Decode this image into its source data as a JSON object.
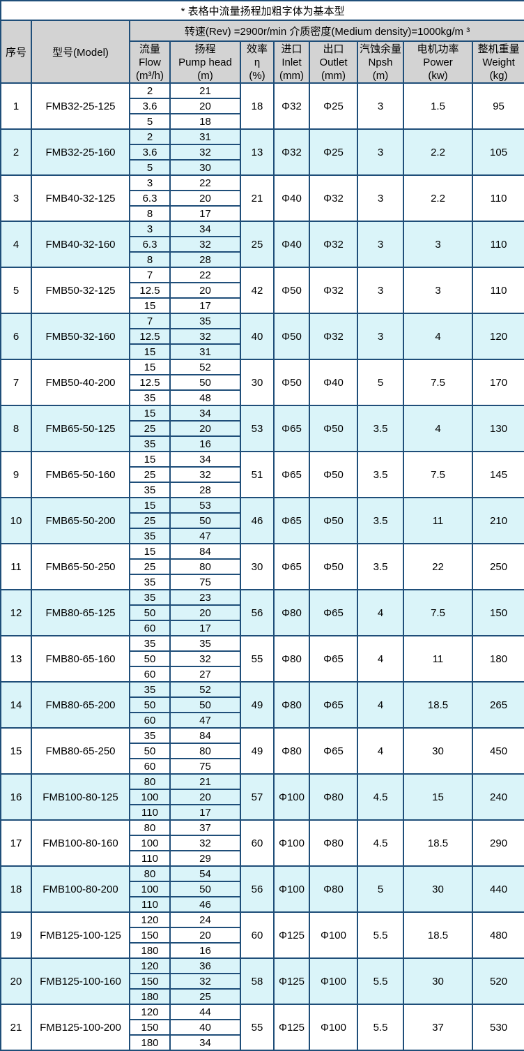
{
  "note": "* 表格中流量扬程加粗字体为基本型",
  "header": {
    "speed": "转速(Rev) =2900r/min  介质密度(Medium density)=1000kg/m ³",
    "index": "序号",
    "model": "型号(Model)",
    "cols": [
      {
        "id": "flow",
        "lines": [
          "流量",
          "Flow",
          "(m³/h)"
        ]
      },
      {
        "id": "head",
        "lines": [
          "扬程",
          "Pump head",
          "(m)"
        ]
      },
      {
        "id": "eff",
        "lines": [
          "效率",
          "η",
          "(%)"
        ]
      },
      {
        "id": "inlet",
        "lines": [
          "进口",
          "Inlet",
          "(mm)"
        ]
      },
      {
        "id": "outlet",
        "lines": [
          "出口",
          "Outlet",
          "(mm)"
        ]
      },
      {
        "id": "npsh",
        "lines": [
          "汽蚀余量",
          "Npsh",
          "(m)"
        ]
      },
      {
        "id": "power",
        "lines": [
          "电机功率",
          "Power",
          "(kw)"
        ]
      },
      {
        "id": "weight",
        "lines": [
          "整机重量",
          "Weight",
          "(kg)"
        ]
      }
    ]
  },
  "colors": {
    "border": "#1f4e79",
    "highlight_row": "#daf4f9",
    "header_bg": "#d3d3d3"
  },
  "rows": [
    {
      "no": "1",
      "model": "FMB32-25-125",
      "flow": [
        "2",
        "3.6",
        "5"
      ],
      "head": [
        "21",
        "20",
        "18"
      ],
      "bold": [
        false,
        true,
        false
      ],
      "eff": "18",
      "inlet": "Φ32",
      "outlet": "Φ25",
      "npsh": "3",
      "power": "1.5",
      "weight": "95",
      "highlight": false
    },
    {
      "no": "2",
      "model": "FMB32-25-160",
      "flow": [
        "2",
        "3.6",
        "5"
      ],
      "head": [
        "31",
        "32",
        "30"
      ],
      "bold": [
        false,
        true,
        false
      ],
      "eff": "13",
      "inlet": "Φ32",
      "outlet": "Φ25",
      "npsh": "3",
      "power": "2.2",
      "weight": "105",
      "highlight": true
    },
    {
      "no": "3",
      "model": "FMB40-32-125",
      "flow": [
        "3",
        "6.3",
        "8"
      ],
      "head": [
        "22",
        "20",
        "17"
      ],
      "bold": [
        false,
        true,
        false
      ],
      "eff": "21",
      "inlet": "Φ40",
      "outlet": "Φ32",
      "npsh": "3",
      "power": "2.2",
      "weight": "110",
      "highlight": false
    },
    {
      "no": "4",
      "model": "FMB40-32-160",
      "flow": [
        "3",
        "6.3",
        "8"
      ],
      "head": [
        "34",
        "32",
        "28"
      ],
      "bold": [
        false,
        true,
        false
      ],
      "eff": "25",
      "inlet": "Φ40",
      "outlet": "Φ32",
      "npsh": "3",
      "power": "3",
      "weight": "110",
      "highlight": true
    },
    {
      "no": "5",
      "model": "FMB50-32-125",
      "flow": [
        "7",
        "12.5",
        "15"
      ],
      "head": [
        "22",
        "20",
        "17"
      ],
      "bold": [
        false,
        true,
        false
      ],
      "eff": "42",
      "inlet": "Φ50",
      "outlet": "Φ32",
      "npsh": "3",
      "power": "3",
      "weight": "110",
      "highlight": false
    },
    {
      "no": "6",
      "model": "FMB50-32-160",
      "flow": [
        "7",
        "12.5",
        "15"
      ],
      "head": [
        "35",
        "32",
        "31"
      ],
      "bold": [
        false,
        true,
        false
      ],
      "eff": "40",
      "inlet": "Φ50",
      "outlet": "Φ32",
      "npsh": "3",
      "power": "4",
      "weight": "120",
      "highlight": true
    },
    {
      "no": "7",
      "model": "FMB50-40-200",
      "flow": [
        "15",
        "12.5",
        "35"
      ],
      "head": [
        "52",
        "50",
        "48"
      ],
      "bold": [
        false,
        true,
        false
      ],
      "eff": "30",
      "inlet": "Φ50",
      "outlet": "Φ40",
      "npsh": "5",
      "power": "7.5",
      "weight": "170",
      "highlight": false
    },
    {
      "no": "8",
      "model": "FMB65-50-125",
      "flow": [
        "15",
        "25",
        "35"
      ],
      "head": [
        "34",
        "20",
        "16"
      ],
      "bold": [
        false,
        true,
        false
      ],
      "eff": "53",
      "inlet": "Φ65",
      "outlet": "Φ50",
      "npsh": "3.5",
      "power": "4",
      "weight": "130",
      "highlight": true
    },
    {
      "no": "9",
      "model": "FMB65-50-160",
      "flow": [
        "15",
        "25",
        "35"
      ],
      "head": [
        "34",
        "32",
        "28"
      ],
      "bold": [
        false,
        true,
        false
      ],
      "eff": "51",
      "inlet": "Φ65",
      "outlet": "Φ50",
      "npsh": "3.5",
      "power": "7.5",
      "weight": "145",
      "highlight": false
    },
    {
      "no": "10",
      "model": "FMB65-50-200",
      "flow": [
        "15",
        "25",
        "35"
      ],
      "head": [
        "53",
        "50",
        "47"
      ],
      "bold": [
        false,
        true,
        false
      ],
      "eff": "46",
      "inlet": "Φ65",
      "outlet": "Φ50",
      "npsh": "3.5",
      "power": "11",
      "weight": "210",
      "highlight": true
    },
    {
      "no": "11",
      "model": "FMB65-50-250",
      "flow": [
        "15",
        "25",
        "35"
      ],
      "head": [
        "84",
        "80",
        "75"
      ],
      "bold": [
        false,
        true,
        false
      ],
      "eff": "30",
      "inlet": "Φ65",
      "outlet": "Φ50",
      "npsh": "3.5",
      "power": "22",
      "weight": "250",
      "highlight": false
    },
    {
      "no": "12",
      "model": "FMB80-65-125",
      "flow": [
        "35",
        "50",
        "60"
      ],
      "head": [
        "23",
        "20",
        "17"
      ],
      "bold": [
        false,
        true,
        false
      ],
      "eff": "56",
      "inlet": "Φ80",
      "outlet": "Φ65",
      "npsh": "4",
      "power": "7.5",
      "weight": "150",
      "highlight": true
    },
    {
      "no": "13",
      "model": "FMB80-65-160",
      "flow": [
        "35",
        "50",
        "60"
      ],
      "head": [
        "35",
        "32",
        "27"
      ],
      "bold": [
        false,
        true,
        false
      ],
      "eff": "55",
      "inlet": "Φ80",
      "outlet": "Φ65",
      "npsh": "4",
      "power": "11",
      "weight": "180",
      "highlight": false
    },
    {
      "no": "14",
      "model": "FMB80-65-200",
      "flow": [
        "35",
        "50",
        "60"
      ],
      "head": [
        "52",
        "50",
        "47"
      ],
      "bold": [
        false,
        true,
        false
      ],
      "eff": "49",
      "inlet": "Φ80",
      "outlet": "Φ65",
      "npsh": "4",
      "power": "18.5",
      "weight": "265",
      "highlight": true
    },
    {
      "no": "15",
      "model": "FMB80-65-250",
      "flow": [
        "35",
        "50",
        "60"
      ],
      "head": [
        "84",
        "80",
        "75"
      ],
      "bold": [
        false,
        true,
        false
      ],
      "eff": "49",
      "inlet": "Φ80",
      "outlet": "Φ65",
      "npsh": "4",
      "power": "30",
      "weight": "450",
      "highlight": false
    },
    {
      "no": "16",
      "model": "FMB100-80-125",
      "flow": [
        "80",
        "100",
        "110"
      ],
      "head": [
        "21",
        "20",
        "17"
      ],
      "bold": [
        false,
        true,
        false
      ],
      "eff": "57",
      "inlet": "Φ100",
      "outlet": "Φ80",
      "npsh": "4.5",
      "power": "15",
      "weight": "240",
      "highlight": true
    },
    {
      "no": "17",
      "model": "FMB100-80-160",
      "flow": [
        "80",
        "100",
        "110"
      ],
      "head": [
        "37",
        "32",
        "29"
      ],
      "bold": [
        true,
        true,
        false
      ],
      "eff": "60",
      "inlet": "Φ100",
      "outlet": "Φ80",
      "npsh": "4.5",
      "power": "18.5",
      "weight": "290",
      "highlight": false
    },
    {
      "no": "18",
      "model": "FMB100-80-200",
      "flow": [
        "80",
        "100",
        "110"
      ],
      "head": [
        "54",
        "50",
        "46"
      ],
      "bold": [
        false,
        true,
        false
      ],
      "eff": "56",
      "inlet": "Φ100",
      "outlet": "Φ80",
      "npsh": "5",
      "power": "30",
      "weight": "440",
      "highlight": true
    },
    {
      "no": "19",
      "model": "FMB125-100-125",
      "flow": [
        "120",
        "150",
        "180"
      ],
      "head": [
        "24",
        "20",
        "16"
      ],
      "bold": [
        false,
        true,
        false
      ],
      "eff": "60",
      "inlet": "Φ125",
      "outlet": "Φ100",
      "npsh": "5.5",
      "power": "18.5",
      "weight": "480",
      "highlight": false
    },
    {
      "no": "20",
      "model": "FMB125-100-160",
      "flow": [
        "120",
        "150",
        "180"
      ],
      "head": [
        "36",
        "32",
        "25"
      ],
      "bold": [
        false,
        true,
        false
      ],
      "eff": "58",
      "inlet": "Φ125",
      "outlet": "Φ100",
      "npsh": "5.5",
      "power": "30",
      "weight": "520",
      "highlight": true
    },
    {
      "no": "21",
      "model": "FMB125-100-200",
      "flow": [
        "120",
        "150",
        "180"
      ],
      "head": [
        "44",
        "40",
        "34"
      ],
      "bold": [
        false,
        true,
        false
      ],
      "eff": "55",
      "inlet": "Φ125",
      "outlet": "Φ100",
      "npsh": "5.5",
      "power": "37",
      "weight": "530",
      "highlight": false
    }
  ]
}
